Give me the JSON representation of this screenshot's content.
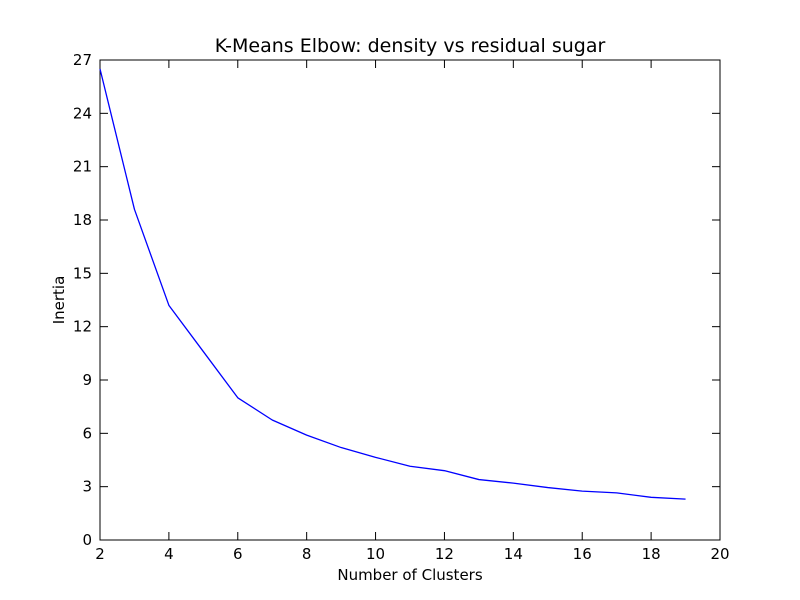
{
  "chart_data": {
    "type": "line",
    "title": "K-Means Elbow: density vs residual sugar",
    "xlabel": "Number of Clusters",
    "ylabel": "Inertia",
    "xlim": [
      2,
      20
    ],
    "ylim": [
      0,
      27
    ],
    "xticks": [
      "2",
      "4",
      "6",
      "8",
      "10",
      "12",
      "14",
      "16",
      "18",
      "20"
    ],
    "yticks": [
      "0",
      "3",
      "6",
      "9",
      "12",
      "15",
      "18",
      "21",
      "24",
      "27"
    ],
    "grid": false,
    "legend": "none",
    "series": [
      {
        "color": "#0000ff",
        "x": [
          2,
          3,
          4,
          5,
          6,
          7,
          8,
          9,
          10,
          11,
          12,
          13,
          14,
          15,
          16,
          17,
          18,
          19
        ],
        "y": [
          26.5,
          18.6,
          13.2,
          10.6,
          8.0,
          6.75,
          5.9,
          5.2,
          4.65,
          4.15,
          3.9,
          3.4,
          3.2,
          2.95,
          2.75,
          2.65,
          2.4,
          2.3
        ]
      }
    ]
  }
}
